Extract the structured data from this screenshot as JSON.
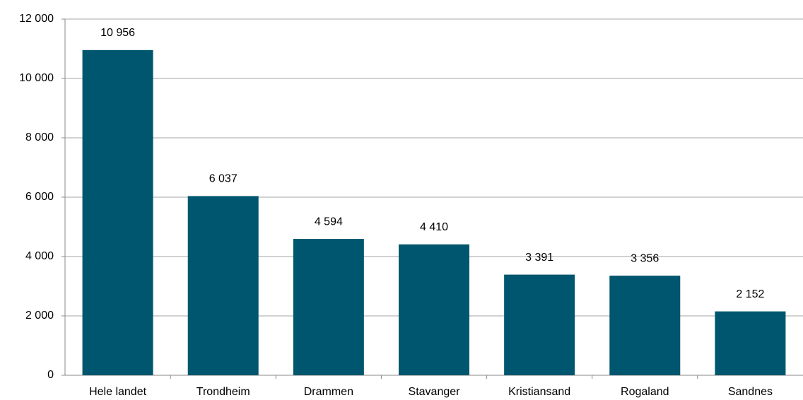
{
  "chart_data": {
    "type": "bar",
    "categories": [
      "Hele landet",
      "Trondheim",
      "Drammen",
      "Stavanger",
      "Kristiansand",
      "Rogaland",
      "Sandnes"
    ],
    "values": [
      10956,
      6037,
      4594,
      4410,
      3391,
      3356,
      2152
    ],
    "value_labels": [
      "10 956",
      "6 037",
      "4 594",
      "4 410",
      "3 391",
      "3 356",
      "2 152"
    ],
    "color": "#00566e",
    "ylim": [
      0,
      12000
    ],
    "yticks": [
      0,
      {
        "value": 2000,
        "label": "2 000"
      },
      {
        "value": 4000,
        "label": "4 000"
      },
      {
        "value": 6000,
        "label": "6 000"
      },
      {
        "value": 8000,
        "label": "8 000"
      },
      {
        "value": 10000,
        "label": "10 000"
      },
      {
        "value": 12000,
        "label": "12 000"
      }
    ],
    "grid": true
  }
}
